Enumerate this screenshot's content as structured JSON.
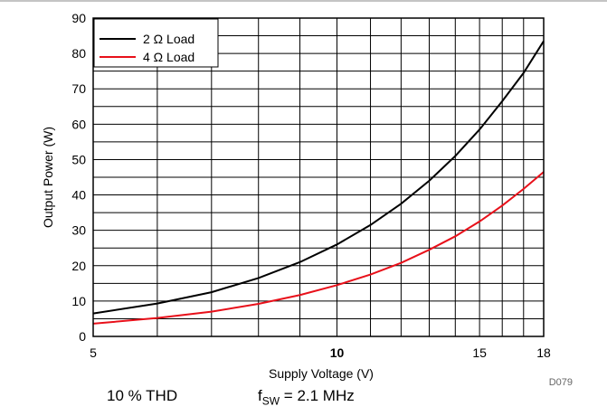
{
  "chart_data": {
    "type": "line",
    "x_scale": "log",
    "xlim": [
      5,
      18
    ],
    "ylim": [
      0,
      90
    ],
    "xlabel": "Supply Voltage (V)",
    "ylabel": "Output Power (W)",
    "x_ticks": [
      "5",
      "10",
      "15",
      "18"
    ],
    "y_ticks": [
      "0",
      "10",
      "20",
      "30",
      "40",
      "50",
      "60",
      "70",
      "80",
      "90"
    ],
    "grid": true,
    "legend_position": "top-left",
    "series": [
      {
        "name": "2 Ω Load",
        "color": "#000000",
        "x": [
          5,
          6,
          7,
          8,
          9,
          10,
          11,
          12,
          13,
          14,
          15,
          16,
          17,
          18
        ],
        "y": [
          6.5,
          9.3,
          12.5,
          16.5,
          21.0,
          26.0,
          31.5,
          37.5,
          44.0,
          51.0,
          58.5,
          66.5,
          74.5,
          83.5
        ]
      },
      {
        "name": "4 Ω Load",
        "color": "#e8101a",
        "x": [
          5,
          6,
          7,
          8,
          9,
          10,
          11,
          12,
          13,
          14,
          15,
          16,
          17,
          18
        ],
        "y": [
          3.6,
          5.2,
          7.0,
          9.2,
          11.7,
          14.5,
          17.5,
          20.8,
          24.5,
          28.3,
          32.5,
          37.0,
          41.7,
          46.5
        ]
      }
    ]
  },
  "figure_id": "D079",
  "caption": {
    "condition": "10 % THD",
    "fsw_prefix": "f",
    "fsw_sub": "SW",
    "fsw_value": " = 2.1 MHz"
  }
}
